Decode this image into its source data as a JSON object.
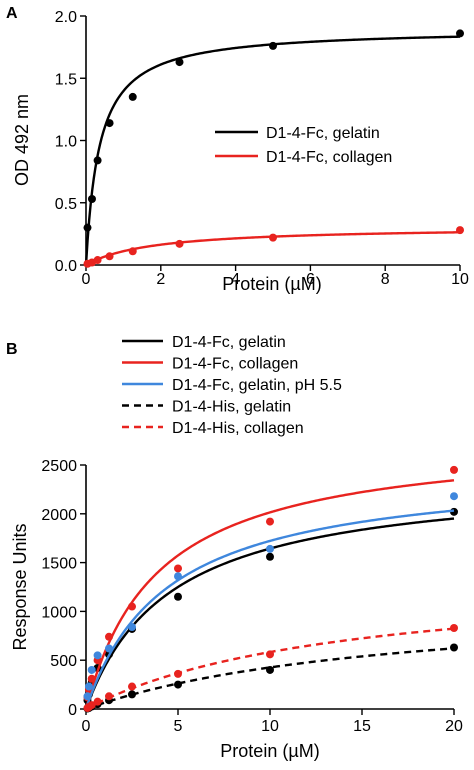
{
  "chart_data": [
    {
      "panel_label": "A",
      "type": "line",
      "title": "",
      "xlabel": "Protein (µM)",
      "ylabel": "OD 492 nm",
      "xlim": [
        0,
        10
      ],
      "ylim": [
        0,
        2.0
      ],
      "xticks": [
        0,
        2,
        4,
        6,
        8,
        10
      ],
      "xtick_labels": [
        "0",
        "2",
        "4",
        "6",
        "8",
        "10"
      ],
      "yticks": [
        0,
        0.5,
        1.0,
        1.5,
        2.0
      ],
      "ytick_labels": [
        "0.0",
        "0.5",
        "1.0",
        "1.5",
        "2.0"
      ],
      "grid": false,
      "legend_position": "center-right",
      "series": [
        {
          "name": "D1-4-Fc, gelatin",
          "color": "#000000",
          "dash": "solid",
          "points": [
            [
              0.04,
              0.3
            ],
            [
              0.16,
              0.53
            ],
            [
              0.31,
              0.84
            ],
            [
              0.63,
              1.14
            ],
            [
              1.25,
              1.35
            ],
            [
              2.5,
              1.63
            ],
            [
              5,
              1.76
            ],
            [
              10,
              1.86
            ]
          ],
          "fit": {
            "bmax": 1.9,
            "kd": 0.36
          }
        },
        {
          "name": "D1-4-Fc, collagen",
          "color": "#e8231f",
          "dash": "solid",
          "points": [
            [
              0.04,
              0.01
            ],
            [
              0.16,
              0.02
            ],
            [
              0.31,
              0.04
            ],
            [
              0.63,
              0.07
            ],
            [
              1.25,
              0.11
            ],
            [
              2.5,
              0.17
            ],
            [
              5,
              0.22
            ],
            [
              10,
              0.28
            ]
          ],
          "fit": {
            "bmax": 0.31,
            "kd": 1.8
          }
        }
      ]
    },
    {
      "panel_label": "B",
      "type": "line",
      "title": "",
      "xlabel": "Protein (µM)",
      "ylabel": "Response Units",
      "xlim": [
        0,
        20
      ],
      "ylim": [
        0,
        2500
      ],
      "xticks": [
        0,
        5,
        10,
        15,
        20
      ],
      "xtick_labels": [
        "0",
        "5",
        "10",
        "15",
        "20"
      ],
      "yticks": [
        0,
        500,
        1000,
        1500,
        2000,
        2500
      ],
      "ytick_labels": [
        "0",
        "500",
        "1000",
        "1500",
        "2000",
        "2500"
      ],
      "grid": false,
      "legend_position": "top-left",
      "series": [
        {
          "name": "D1-4-Fc, gelatin",
          "color": "#000000",
          "dash": "solid",
          "points": [
            [
              0.08,
              90
            ],
            [
              0.16,
              150
            ],
            [
              0.31,
              270
            ],
            [
              0.63,
              420
            ],
            [
              1.25,
              560
            ],
            [
              2.5,
              820
            ],
            [
              5,
              1150
            ],
            [
              10,
              1560
            ],
            [
              20,
              2020
            ]
          ],
          "fit": {
            "bmax": 2400,
            "kd": 4.6
          }
        },
        {
          "name": "D1-4-Fc, collagen",
          "color": "#e8231f",
          "dash": "solid",
          "points": [
            [
              0.08,
              120
            ],
            [
              0.16,
              200
            ],
            [
              0.31,
              310
            ],
            [
              0.63,
              500
            ],
            [
              1.25,
              740
            ],
            [
              2.5,
              1050
            ],
            [
              5,
              1440
            ],
            [
              10,
              1920
            ],
            [
              20,
              2450
            ]
          ],
          "fit": {
            "bmax": 2800,
            "kd": 3.9
          }
        },
        {
          "name": "D1-4-Fc, gelatin, pH 5.5",
          "color": "#3f87dd",
          "dash": "solid",
          "points": [
            [
              0.08,
              130
            ],
            [
              0.16,
              230
            ],
            [
              0.31,
              400
            ],
            [
              0.63,
              550
            ],
            [
              1.25,
              620
            ],
            [
              2.5,
              840
            ],
            [
              5,
              1360
            ],
            [
              10,
              1640
            ],
            [
              20,
              2180
            ]
          ],
          "fit": {
            "bmax": 2480,
            "kd": 4.4
          }
        },
        {
          "name": "D1-4-His, gelatin",
          "color": "#000000",
          "dash": "dashed",
          "points": [
            [
              0.08,
              5
            ],
            [
              0.16,
              10
            ],
            [
              0.31,
              25
            ],
            [
              0.63,
              50
            ],
            [
              1.25,
              90
            ],
            [
              2.5,
              150
            ],
            [
              5,
              250
            ],
            [
              10,
              400
            ],
            [
              20,
              630
            ]
          ],
          "fit": {
            "bmax": 1150,
            "kd": 17
          }
        },
        {
          "name": "D1-4-His, collagen",
          "color": "#e8231f",
          "dash": "dashed",
          "points": [
            [
              0.08,
              10
            ],
            [
              0.16,
              20
            ],
            [
              0.31,
              40
            ],
            [
              0.63,
              75
            ],
            [
              1.25,
              130
            ],
            [
              2.5,
              230
            ],
            [
              5,
              360
            ],
            [
              10,
              560
            ],
            [
              20,
              830
            ]
          ],
          "fit": {
            "bmax": 1400,
            "kd": 14
          }
        }
      ]
    }
  ]
}
